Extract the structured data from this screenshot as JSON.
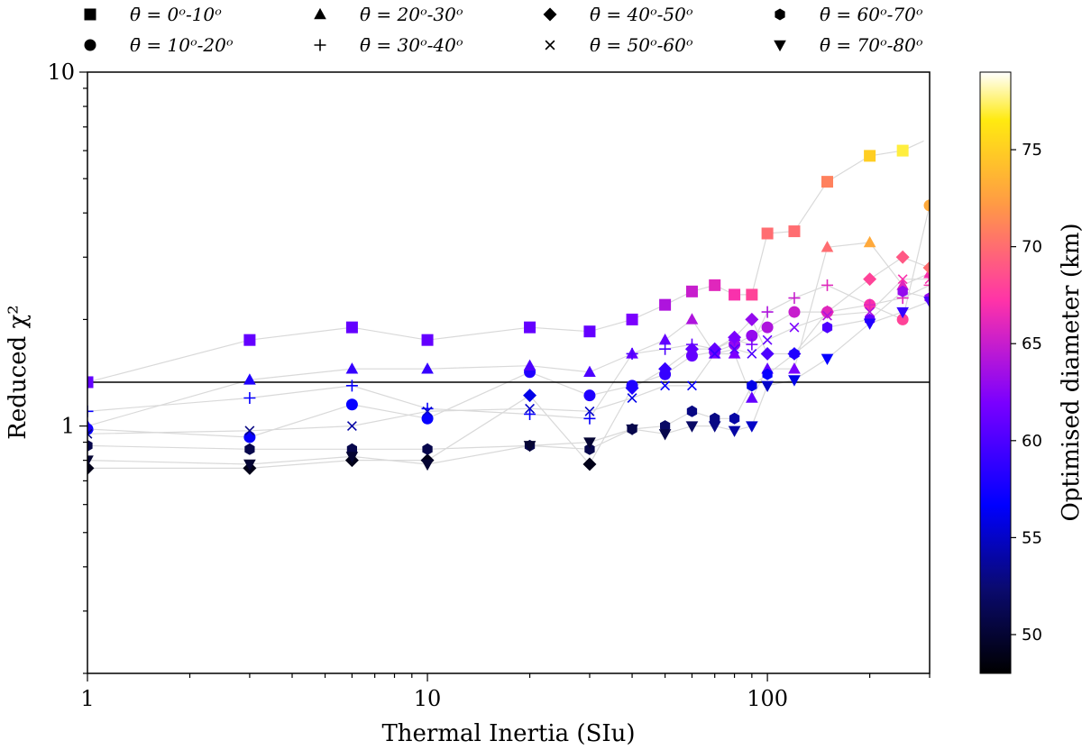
{
  "chart_data": {
    "type": "scatter",
    "xlabel": "Thermal Inertia (SIu)",
    "ylabel": "Reduced χ²",
    "xscale": "log",
    "yscale": "log",
    "xlim": [
      1,
      300
    ],
    "ylim": [
      0.2,
      10
    ],
    "x_tick_labels": [
      {
        "value": 1,
        "label": "1"
      },
      {
        "value": 10,
        "label": "10"
      },
      {
        "value": 100,
        "label": "100"
      }
    ],
    "y_tick_labels": [
      {
        "value": 1,
        "label": "1"
      },
      {
        "value": 10,
        "label": "10"
      }
    ],
    "reference_line": {
      "y": 1.33
    },
    "colorbar": {
      "label": "Optimised diameter (km)",
      "range": [
        48,
        79
      ],
      "ticks": [
        50,
        55,
        60,
        65,
        70,
        75
      ],
      "colormap": "gnuplot2"
    },
    "legend_location": "top",
    "series": [
      {
        "name": "θ̄ = 0ᵒ-10ᵒ",
        "marker": "square",
        "x": [
          1,
          3,
          6,
          10,
          20,
          30,
          40,
          50,
          60,
          70,
          80,
          90,
          100,
          120,
          150,
          200,
          250,
          300
        ],
        "y": [
          1.33,
          1.75,
          1.9,
          1.75,
          1.9,
          1.85,
          2.0,
          2.2,
          2.4,
          2.5,
          2.35,
          2.35,
          3.5,
          3.55,
          4.9,
          5.8,
          6.0,
          6.5
        ],
        "diameter": [
          61,
          61,
          61,
          61,
          61,
          61,
          62,
          64,
          65,
          66,
          67,
          68,
          70,
          70,
          71,
          75,
          77,
          79
        ]
      },
      {
        "name": "θ̄ = 10ᵒ-20ᵒ",
        "marker": "circle",
        "x": [
          1,
          3,
          6,
          10,
          20,
          30,
          40,
          50,
          60,
          70,
          80,
          90,
          100,
          120,
          150,
          200,
          250,
          300
        ],
        "y": [
          0.98,
          0.93,
          1.15,
          1.05,
          1.42,
          1.22,
          1.3,
          1.4,
          1.58,
          1.62,
          1.7,
          1.8,
          1.9,
          2.1,
          2.1,
          2.2,
          2.0,
          4.2
        ],
        "diameter": [
          57,
          57,
          57,
          57,
          58,
          58,
          58,
          59,
          61,
          62,
          63,
          63,
          64,
          65,
          66,
          67,
          68,
          73
        ]
      },
      {
        "name": "θ̄ = 20ᵒ-30ᵒ",
        "marker": "triangle-up",
        "x": [
          1,
          3,
          6,
          10,
          20,
          30,
          40,
          50,
          60,
          70,
          80,
          90,
          100,
          120,
          150,
          200,
          250,
          300
        ],
        "y": [
          1.0,
          1.35,
          1.45,
          1.45,
          1.48,
          1.42,
          1.6,
          1.75,
          2.0,
          1.6,
          1.6,
          1.2,
          1.45,
          1.45,
          3.2,
          3.3,
          2.5,
          2.7
        ],
        "diameter": [
          58,
          58,
          59,
          59,
          60,
          60,
          61,
          61,
          64,
          62,
          62,
          61,
          61,
          62,
          70,
          73,
          66,
          67
        ]
      },
      {
        "name": "θ̄ = 30ᵒ-40ᵒ",
        "marker": "plus",
        "x": [
          1,
          3,
          6,
          10,
          20,
          30,
          40,
          50,
          60,
          70,
          80,
          90,
          100,
          120,
          150,
          200,
          250,
          300
        ],
        "y": [
          1.1,
          1.2,
          1.3,
          1.12,
          1.08,
          1.05,
          1.6,
          1.65,
          1.7,
          1.65,
          1.75,
          1.7,
          2.1,
          2.3,
          2.5,
          2.2,
          2.3,
          2.5
        ],
        "diameter": [
          57,
          57,
          57,
          57,
          57,
          57,
          60,
          60,
          61,
          61,
          62,
          62,
          64,
          65,
          66,
          66,
          66,
          67
        ]
      },
      {
        "name": "θ̄ = 40ᵒ-50ᵒ",
        "marker": "diamond",
        "x": [
          1,
          3,
          6,
          10,
          20,
          30,
          40,
          50,
          60,
          70,
          80,
          90,
          100,
          120,
          150,
          200,
          250,
          300
        ],
        "y": [
          0.76,
          0.76,
          0.8,
          0.8,
          1.22,
          0.78,
          1.28,
          1.45,
          1.65,
          1.65,
          1.78,
          2.0,
          1.6,
          1.6,
          2.1,
          2.6,
          3.0,
          2.8
        ],
        "diameter": [
          49,
          49,
          49,
          49,
          56,
          49,
          58,
          59,
          61,
          61,
          62,
          63,
          60,
          59,
          66,
          68,
          69,
          70
        ]
      },
      {
        "name": "θ̄ = 50ᵒ-60ᵒ",
        "marker": "x",
        "x": [
          1,
          3,
          6,
          10,
          20,
          30,
          40,
          50,
          60,
          70,
          80,
          90,
          100,
          120,
          150,
          200,
          250,
          300
        ],
        "y": [
          0.95,
          0.97,
          1.0,
          1.1,
          1.12,
          1.1,
          1.2,
          1.3,
          1.3,
          1.6,
          1.65,
          1.6,
          1.75,
          1.9,
          2.05,
          2.1,
          2.6,
          2.6
        ],
        "diameter": [
          53,
          53,
          54,
          55,
          55,
          55,
          56,
          57,
          57,
          59,
          60,
          60,
          61,
          62,
          64,
          64,
          67,
          67
        ]
      },
      {
        "name": "θ̄ = 60ᵒ-70ᵒ",
        "marker": "hexagon",
        "x": [
          1,
          3,
          6,
          10,
          20,
          30,
          40,
          50,
          60,
          70,
          80,
          90,
          100,
          120,
          150,
          200,
          250,
          300
        ],
        "y": [
          0.88,
          0.86,
          0.86,
          0.86,
          0.88,
          0.86,
          0.98,
          1.0,
          1.1,
          1.05,
          1.05,
          1.3,
          1.4,
          1.6,
          1.9,
          2.0,
          2.4,
          2.3
        ],
        "diameter": [
          51,
          51,
          51,
          51,
          51,
          51,
          51,
          52,
          53,
          53,
          54,
          56,
          57,
          58,
          60,
          61,
          63,
          63
        ]
      },
      {
        "name": "θ̄ = 70ᵒ-80ᵒ",
        "marker": "triangle-down",
        "x": [
          1,
          3,
          6,
          10,
          20,
          30,
          40,
          50,
          60,
          70,
          80,
          90,
          100,
          120,
          150,
          200,
          250,
          300
        ],
        "y": [
          0.8,
          0.78,
          0.82,
          0.78,
          0.88,
          0.9,
          0.98,
          0.95,
          1.0,
          1.0,
          0.97,
          1.0,
          1.3,
          1.35,
          1.55,
          1.95,
          2.1,
          2.25
        ],
        "diameter": [
          50,
          50,
          50,
          50,
          50,
          50,
          51,
          51,
          52,
          53,
          54,
          55,
          55,
          56,
          57,
          58,
          59,
          60
        ]
      }
    ]
  }
}
